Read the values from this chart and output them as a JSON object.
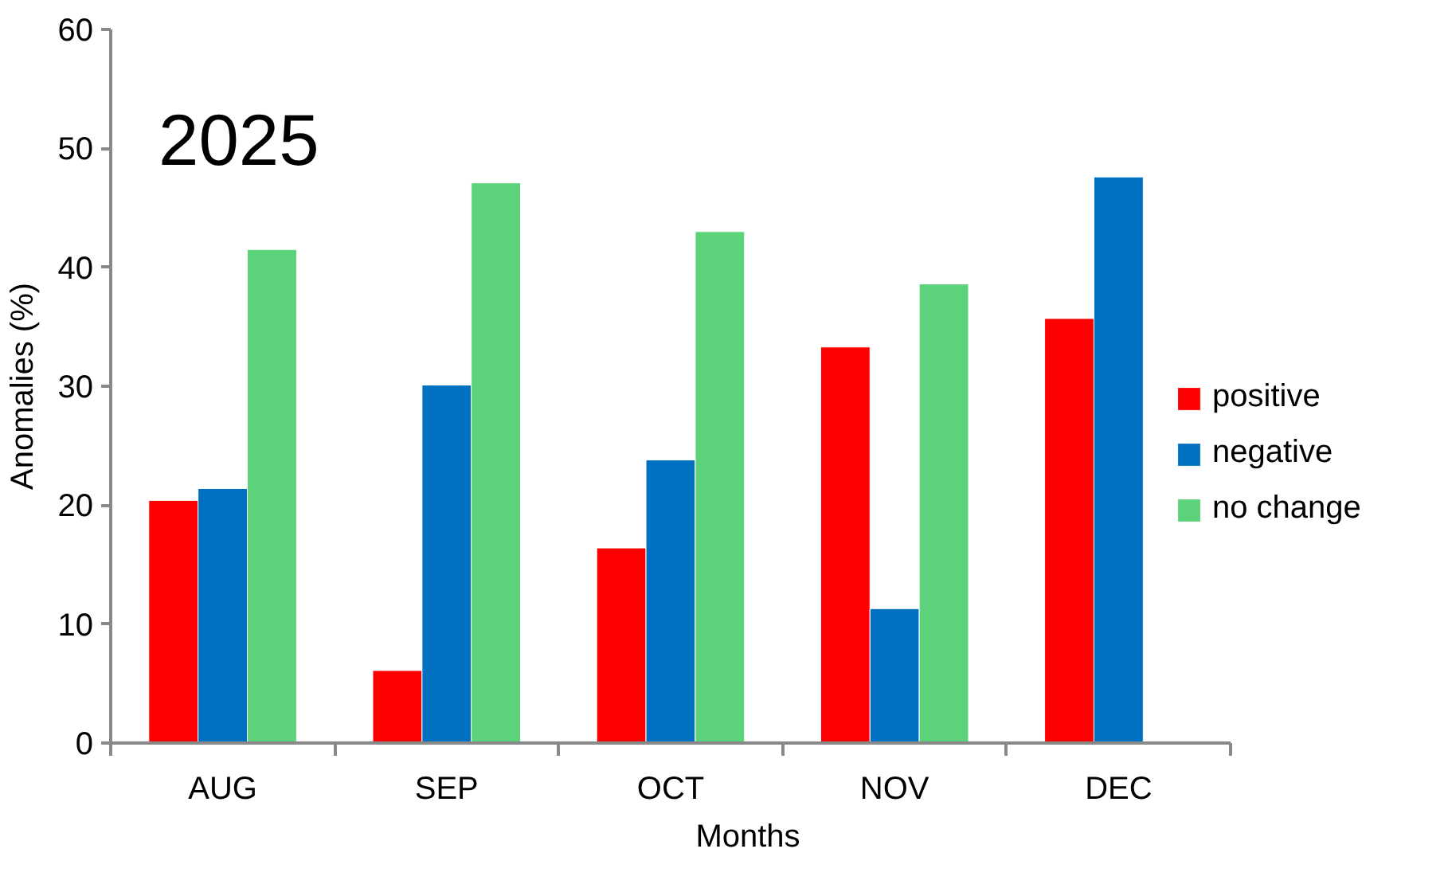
{
  "chart_data": {
    "type": "bar",
    "title": "2025",
    "xlabel": "Months",
    "ylabel": "Anomalies (%)",
    "categories": [
      "AUG",
      "SEP",
      "OCT",
      "NOV",
      "DEC"
    ],
    "series": [
      {
        "name": "positive",
        "color": "#ff0000",
        "values": [
          20.4,
          6.1,
          16.4,
          33.3,
          35.7
        ]
      },
      {
        "name": "negative",
        "color": "#0070c0",
        "values": [
          21.4,
          30.1,
          23.8,
          11.3,
          47.6
        ]
      },
      {
        "name": "no change",
        "color": "#5cd27a",
        "values": [
          41.5,
          47.1,
          43.0,
          38.6,
          null
        ]
      }
    ],
    "ylim": [
      0,
      60
    ],
    "yticks": [
      0,
      10,
      20,
      30,
      40,
      50,
      60
    ],
    "grid": false,
    "legend": "right"
  }
}
